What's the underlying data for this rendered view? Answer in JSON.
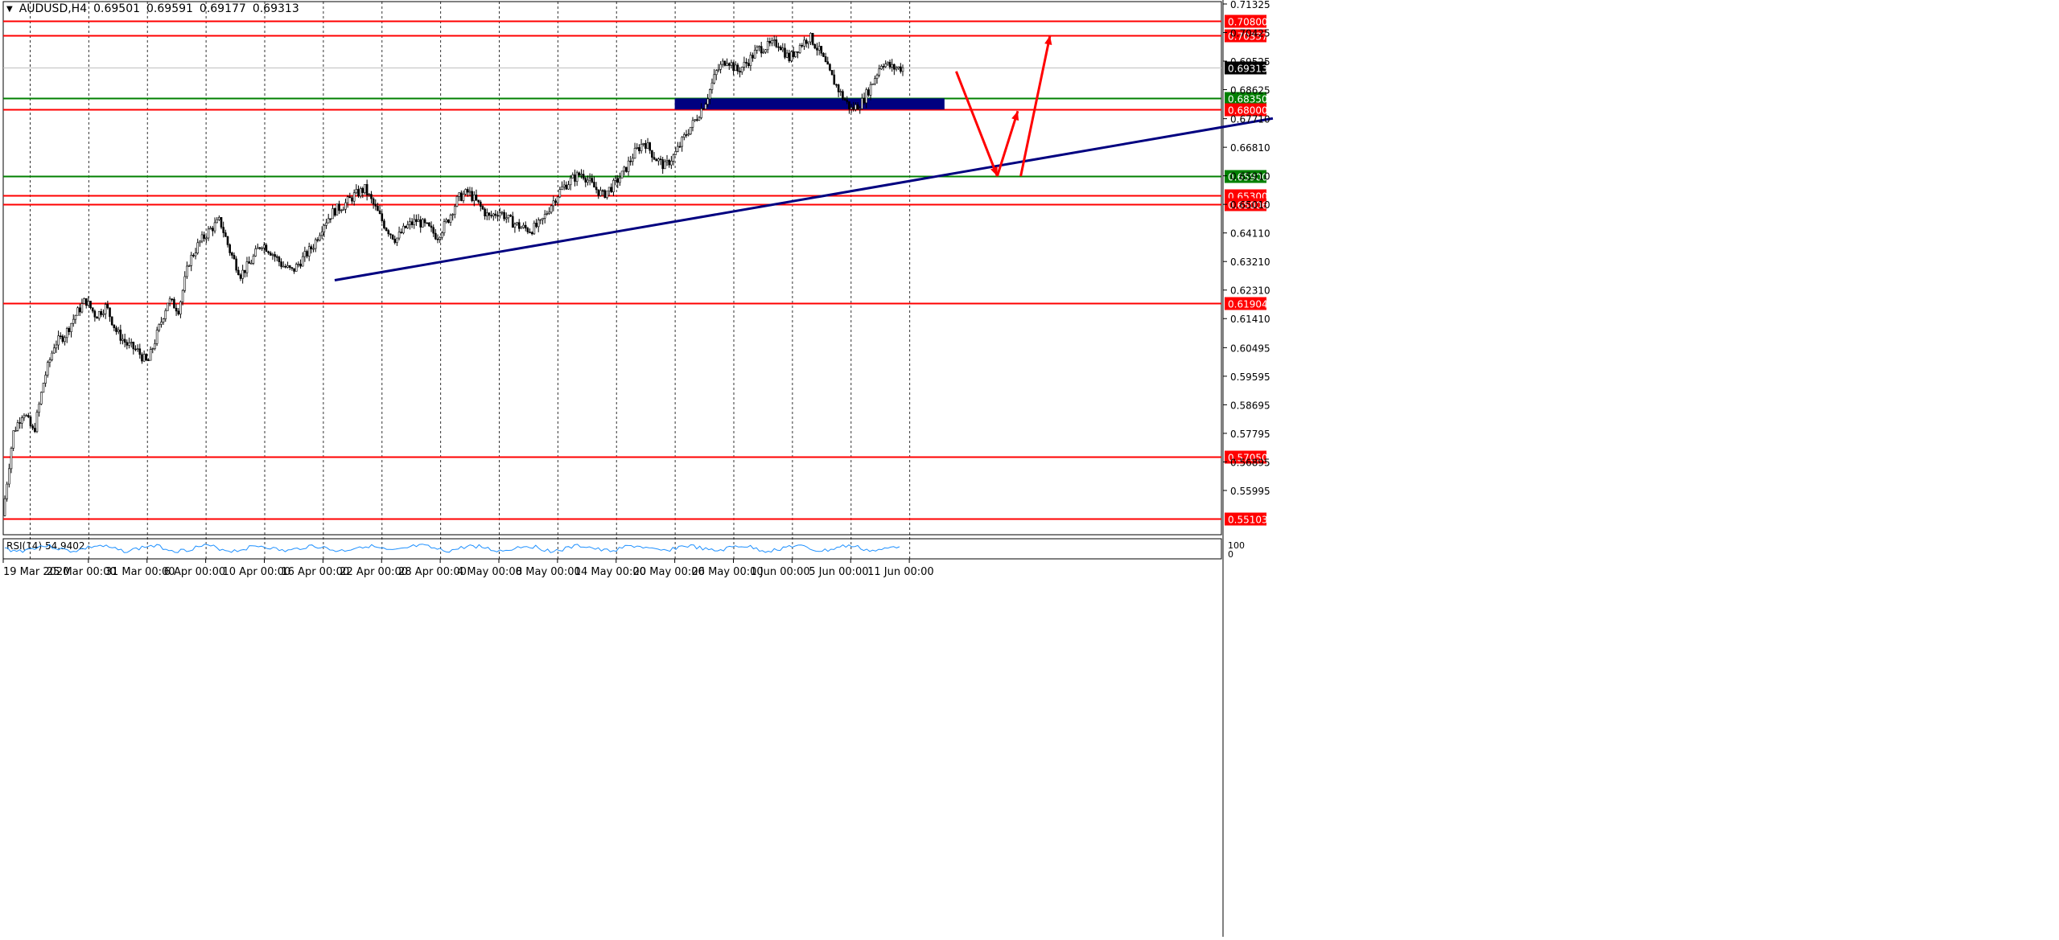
{
  "header": {
    "symbol": "AUDUSD,H4",
    "open": "0.69501",
    "high": "0.69591",
    "low": "0.69177",
    "close": "0.69313"
  },
  "rsi": {
    "label": "RSI(14) 54.9402",
    "scale_top": "100",
    "scale_bottom": "0"
  },
  "colors": {
    "resistance": "#ff0000",
    "support": "#008000",
    "trendline": "#000080",
    "zone": "#000080",
    "candle": "#000000",
    "rsi_line": "#1e90ff",
    "grid": "#000000",
    "current_price": "#000000"
  },
  "chart_data": {
    "type": "candlestick",
    "instrument": "AUDUSD",
    "timeframe": "H4",
    "ylim": [
      0.546,
      0.714
    ],
    "y_ticks": [
      "0.71325",
      "0.70425",
      "0.69525",
      "0.68625",
      "0.67710",
      "0.66810",
      "0.65910",
      "0.65010",
      "0.64110",
      "0.63210",
      "0.62310",
      "0.61410",
      "0.60495",
      "0.59595",
      "0.58695",
      "0.57795",
      "0.56895",
      "0.55995"
    ],
    "x_ticks": [
      "19 Mar 2020",
      "25 Mar 00:00",
      "31 Mar 00:00",
      "6 Apr 00:00",
      "10 Apr 00:00",
      "16 Apr 00:00",
      "22 Apr 00:00",
      "28 Apr 00:00",
      "4 May 00:00",
      "8 May 00:00",
      "14 May 00:00",
      "20 May 00:00",
      "26 May 00:00",
      "1 Jun 00:00",
      "5 Jun 00:00",
      "11 Jun 00:00"
    ],
    "price_path": [
      [
        0.552,
        0.578
      ],
      [
        0.585,
        0.578
      ],
      [
        0.595,
        0.606
      ],
      [
        0.609,
        0.615
      ],
      [
        0.62,
        0.615
      ],
      [
        0.618,
        0.61
      ],
      [
        0.606,
        0.604
      ],
      [
        0.6,
        0.61
      ],
      [
        0.62,
        0.617
      ],
      [
        0.632,
        0.638
      ],
      [
        0.642,
        0.645
      ],
      [
        0.635,
        0.628
      ],
      [
        0.632,
        0.638
      ],
      [
        0.635,
        0.631
      ],
      [
        0.629,
        0.633
      ],
      [
        0.637,
        0.644
      ],
      [
        0.648,
        0.65
      ],
      [
        0.653,
        0.655
      ],
      [
        0.649,
        0.643
      ],
      [
        0.639,
        0.643
      ],
      [
        0.645,
        0.643
      ],
      [
        0.64,
        0.645
      ],
      [
        0.652,
        0.654
      ],
      [
        0.65,
        0.646
      ],
      [
        0.648,
        0.645
      ],
      [
        0.643,
        0.642
      ],
      [
        0.644,
        0.65
      ],
      [
        0.655,
        0.658
      ],
      [
        0.66,
        0.656
      ],
      [
        0.653,
        0.656
      ],
      [
        0.66,
        0.666
      ],
      [
        0.67,
        0.665
      ],
      [
        0.662,
        0.666
      ],
      [
        0.672,
        0.677
      ],
      [
        0.683,
        0.692
      ],
      [
        0.696,
        0.692
      ],
      [
        0.695,
        0.699
      ],
      [
        0.7,
        0.701
      ],
      [
        0.696,
        0.7
      ],
      [
        0.703,
        0.698
      ],
      [
        0.691,
        0.685
      ],
      [
        0.68,
        0.682
      ],
      [
        0.688,
        0.695
      ],
      [
        0.6931,
        0.6931
      ]
    ],
    "horizontal_levels": [
      {
        "value": "0.70800",
        "kind": "resistance"
      },
      {
        "value": "0.70337",
        "kind": "resistance"
      },
      {
        "value": "0.68350",
        "kind": "support"
      },
      {
        "value": "0.68000",
        "kind": "resistance"
      },
      {
        "value": "0.65900",
        "kind": "support"
      },
      {
        "value": "0.65300",
        "kind": "resistance"
      },
      {
        "value": "0.65006",
        "kind": "resistance"
      },
      {
        "value": "0.61904",
        "kind": "resistance"
      },
      {
        "value": "0.57050",
        "kind": "resistance"
      },
      {
        "value": "0.55103",
        "kind": "resistance"
      }
    ],
    "current_price": "0.69313",
    "zone": {
      "from": 0.68,
      "to": 0.6835,
      "x_start_index": 11.0,
      "x_end_index": 15.6
    },
    "trendline": {
      "x0_index": 5.2,
      "y0": 0.6262,
      "x1_index": 21.2,
      "y1": 0.6772
    },
    "projection_arrows": [
      [
        [
          15.8,
          0.692
        ],
        [
          16.5,
          0.659
        ]
      ],
      [
        [
          16.5,
          0.659
        ],
        [
          16.85,
          0.6795
        ]
      ],
      [
        [
          16.9,
          0.659
        ],
        [
          17.4,
          0.7033
        ]
      ]
    ]
  }
}
